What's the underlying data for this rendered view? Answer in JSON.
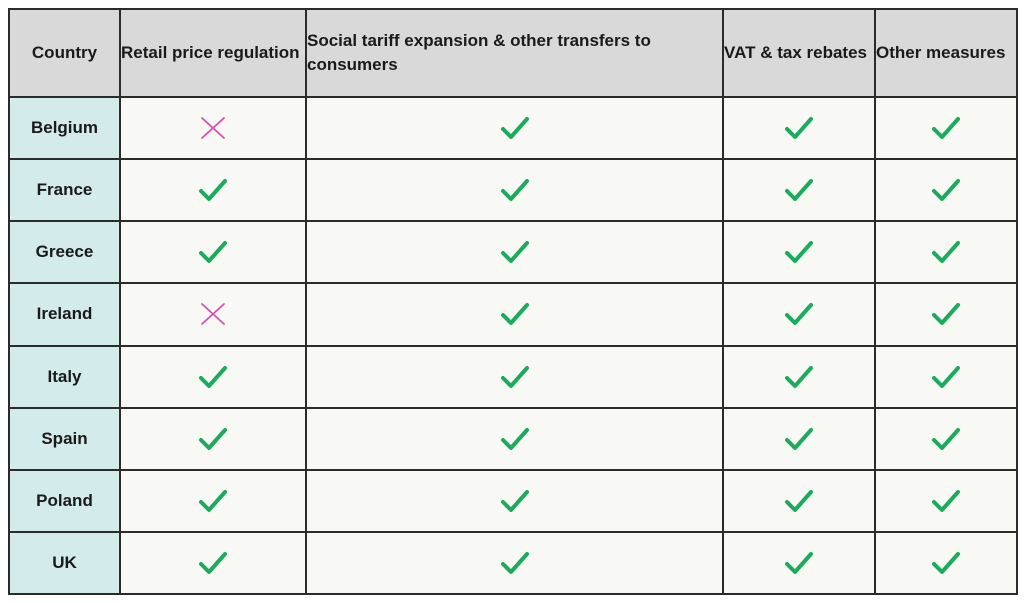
{
  "table": {
    "headers": [
      "Country",
      "Retail price regulation",
      "Social tariff expansion & other transfers to consumers",
      "VAT & tax rebates",
      "Other measures"
    ],
    "rows": [
      {
        "country": "Belgium",
        "marks": [
          "cross",
          "check",
          "check",
          "check"
        ]
      },
      {
        "country": "France",
        "marks": [
          "check",
          "check",
          "check",
          "check"
        ]
      },
      {
        "country": "Greece",
        "marks": [
          "check",
          "check",
          "check",
          "check"
        ]
      },
      {
        "country": "Ireland",
        "marks": [
          "cross",
          "check",
          "check",
          "check"
        ]
      },
      {
        "country": "Italy",
        "marks": [
          "check",
          "check",
          "check",
          "check"
        ]
      },
      {
        "country": "Spain",
        "marks": [
          "check",
          "check",
          "check",
          "check"
        ]
      },
      {
        "country": "Poland",
        "marks": [
          "check",
          "check",
          "check",
          "check"
        ]
      },
      {
        "country": "UK",
        "marks": [
          "check",
          "check",
          "check",
          "check"
        ]
      }
    ]
  },
  "colors": {
    "header_bg": "#d9d9d9",
    "country_bg": "#d3ebea",
    "cell_bg": "#f8f8f5",
    "check": "#1aab5c",
    "cross": "#d94fb3"
  },
  "icons": {
    "check": "check-mark-icon",
    "cross": "cross-mark-icon"
  }
}
